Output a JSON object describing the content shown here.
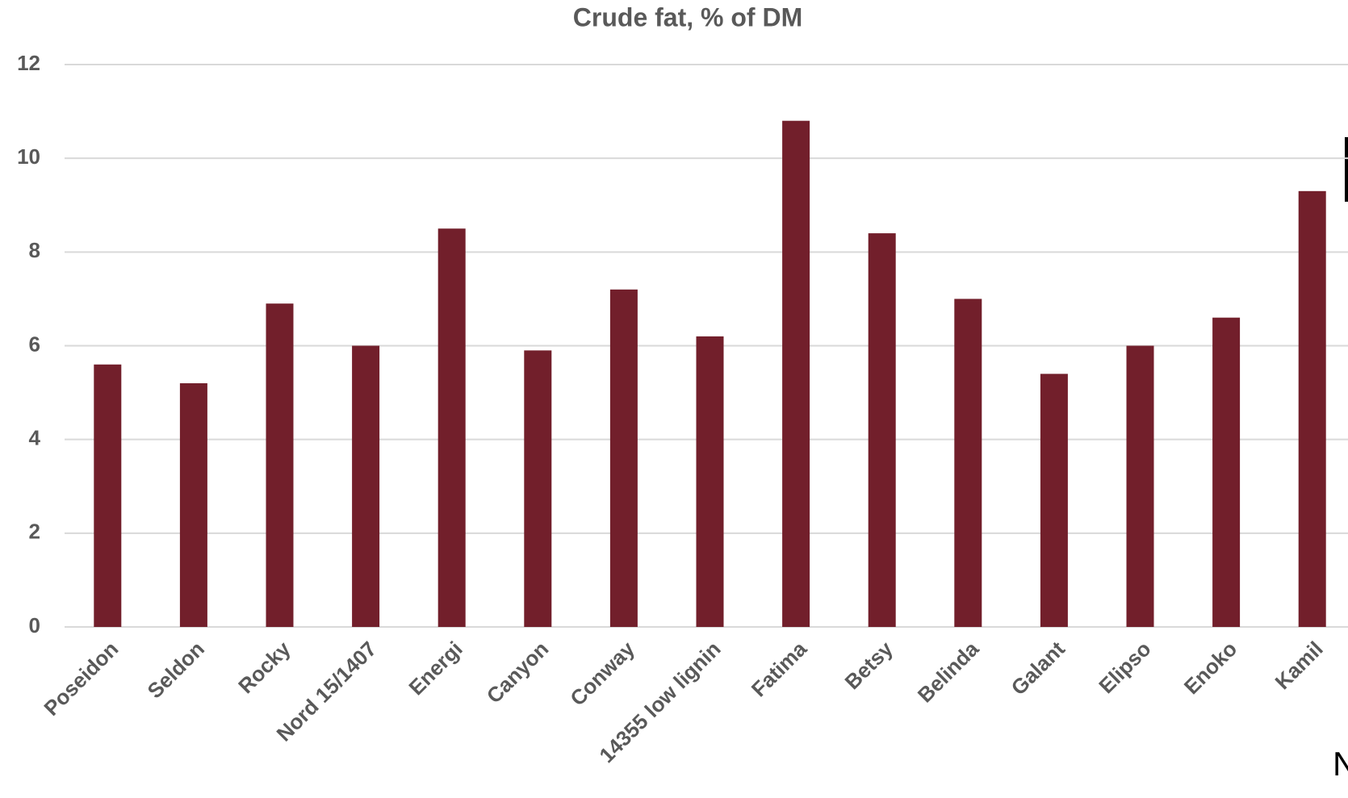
{
  "chart_data": {
    "type": "bar",
    "title": "Crude fat, % of DM",
    "categories": [
      "Poseidon",
      "Seldon",
      "Rocky",
      "Nord 15/1407",
      "Energi",
      "Canyon",
      "Conway",
      "14355 low lignin",
      "Fatima",
      "Betsy",
      "Belinda",
      "Galant",
      "Elipso",
      "Enoko",
      "Kamil"
    ],
    "values": [
      5.6,
      5.2,
      6.9,
      6.0,
      8.5,
      5.9,
      7.2,
      6.2,
      10.8,
      8.4,
      7.0,
      5.4,
      6.0,
      6.6,
      9.3
    ],
    "color": "#721f2b",
    "ylim": [
      0,
      12
    ],
    "yticks": [
      0,
      2,
      4,
      6,
      8,
      10,
      12
    ],
    "grid": true,
    "annotations": [
      "N"
    ]
  }
}
